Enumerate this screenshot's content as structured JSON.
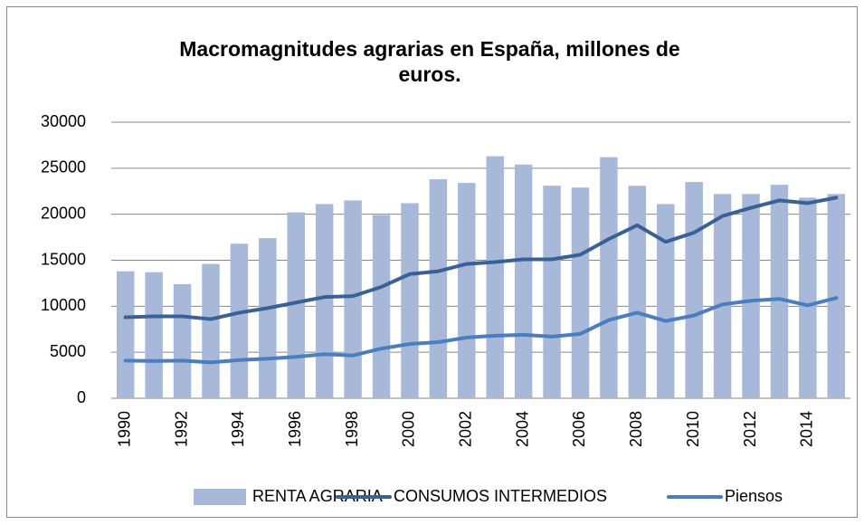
{
  "chart_data": {
    "type": "bar_line",
    "title": "Macromagnitudes agrarias en España, millones de euros.",
    "categories": [
      "1990",
      null,
      "1992",
      null,
      "1994",
      null,
      "1996",
      null,
      "1998",
      null,
      "2000",
      null,
      "2002",
      null,
      "2004",
      null,
      "2006",
      null,
      "2008",
      null,
      "2010",
      null,
      "2012",
      null,
      "2014",
      null
    ],
    "series": [
      {
        "name": "RENTA AGRARIA",
        "kind": "bar",
        "color": "#a7b8d9",
        "values": [
          13800,
          13700,
          12400,
          14600,
          16800,
          17400,
          20200,
          21100,
          21500,
          19900,
          21200,
          23800,
          23400,
          26300,
          25400,
          23100,
          22900,
          26200,
          23100,
          21100,
          23500,
          22200,
          22200,
          23200,
          21800,
          22200
        ]
      },
      {
        "name": "CONSUMOS INTERMEDIOS",
        "kind": "line",
        "color": "#3a6195",
        "values": [
          8800,
          8900,
          8900,
          8600,
          9300,
          9800,
          10400,
          11000,
          11100,
          12100,
          13500,
          13800,
          14600,
          14800,
          15100,
          15100,
          15600,
          17300,
          18800,
          17000,
          18000,
          19800,
          20700,
          21500,
          21200,
          21800
        ]
      },
      {
        "name": "Piensos",
        "kind": "line",
        "color": "#4a7ebf",
        "values": [
          4100,
          4050,
          4100,
          3900,
          4150,
          4300,
          4500,
          4800,
          4650,
          5400,
          5900,
          6100,
          6600,
          6800,
          6900,
          6700,
          7000,
          8500,
          9300,
          8400,
          9000,
          10200,
          10600,
          10800,
          10100,
          10900
        ]
      }
    ],
    "ylim": [
      0,
      30000
    ],
    "yticks": [
      0,
      5000,
      10000,
      15000,
      20000,
      25000,
      30000
    ],
    "grid": true,
    "legend": "bottom"
  }
}
